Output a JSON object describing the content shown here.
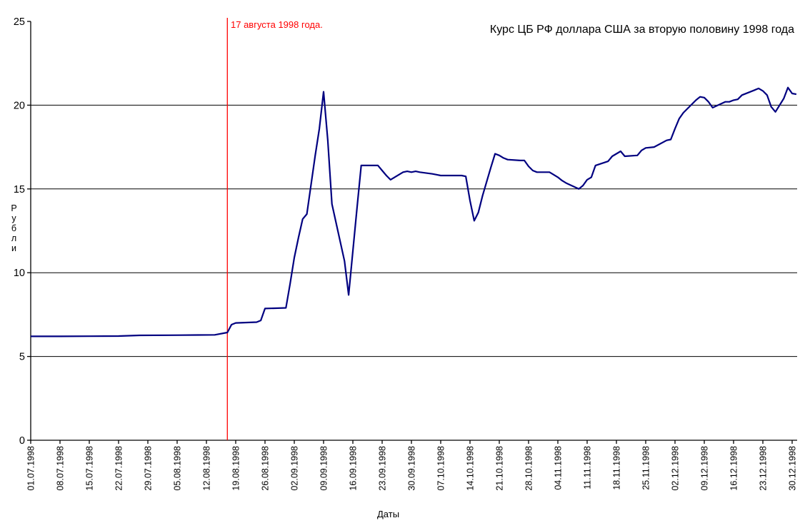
{
  "chart": {
    "title": "Курс ЦБ РФ доллара США за вторую половину 1998 года",
    "annotation": {
      "text": "17 августа 1998 года.",
      "date": "17.08.1998",
      "color": "#ff0000"
    },
    "colors": {
      "line": "#000080",
      "grid": "#000000",
      "axis": "#000000",
      "background": "#ffffff"
    },
    "y_axis": {
      "title": "Рубли",
      "tick_labels": [
        "0",
        "5",
        "10",
        "15",
        "20",
        "25"
      ]
    },
    "x_axis": {
      "title": "Даты",
      "tick_labels": [
        "01.07.1998",
        "08.07.1998",
        "15.07.1998",
        "22.07.1998",
        "29.07.1998",
        "05.08.1998",
        "12.08.1998",
        "19.08.1998",
        "26.08.1998",
        "02.09.1998",
        "09.09.1998",
        "16.09.1998",
        "23.09.1998",
        "30.09.1998",
        "07.10.1998",
        "14.10.1998",
        "21.10.1998",
        "28.10.1998",
        "04.11.1998",
        "11.11.1998",
        "18.11.1998",
        "25.11.1998",
        "02.12.1998",
        "09.12.1998",
        "16.12.1998",
        "23.12.1998",
        "30.12.1998"
      ]
    }
  },
  "chart_data": {
    "type": "line",
    "title": "Курс ЦБ РФ доллара США за вторую половину 1998 года",
    "xlabel": "Даты",
    "ylabel": "Рубли",
    "ylim": [
      0,
      25
    ],
    "y_ticks": [
      0,
      5,
      10,
      15,
      20,
      25
    ],
    "gridline_values": [
      5,
      10,
      15,
      20
    ],
    "grid": "horizontal",
    "legend_position": "none",
    "x_range": [
      "01.07.1998",
      "31.12.1998"
    ],
    "annotation": {
      "text": "17 августа 1998 года.",
      "x": "17.08.1998"
    },
    "series": [
      {
        "name": "Курс ЦБ РФ доллара США (руб.)",
        "points": [
          [
            "01.07.1998",
            6.2
          ],
          [
            "08.07.1998",
            6.2
          ],
          [
            "15.07.1998",
            6.21
          ],
          [
            "22.07.1998",
            6.22
          ],
          [
            "27.07.1998",
            6.26
          ],
          [
            "03.08.1998",
            6.27
          ],
          [
            "10.08.1998",
            6.28
          ],
          [
            "14.08.1998",
            6.29
          ],
          [
            "17.08.1998",
            6.43
          ],
          [
            "18.08.1998",
            6.9
          ],
          [
            "19.08.1998",
            7.0
          ],
          [
            "24.08.1998",
            7.05
          ],
          [
            "25.08.1998",
            7.15
          ],
          [
            "26.08.1998",
            7.86
          ],
          [
            "31.08.1998",
            7.9
          ],
          [
            "01.09.1998",
            9.33
          ],
          [
            "02.09.1998",
            10.9
          ],
          [
            "03.09.1998",
            12.1
          ],
          [
            "04.09.1998",
            13.2
          ],
          [
            "05.09.1998",
            13.5
          ],
          [
            "07.09.1998",
            17.0
          ],
          [
            "08.09.1998",
            18.6
          ],
          [
            "09.09.1998",
            20.8
          ],
          [
            "10.09.1998",
            17.9
          ],
          [
            "11.09.1998",
            14.1
          ],
          [
            "14.09.1998",
            10.7
          ],
          [
            "15.09.1998",
            8.67
          ],
          [
            "17.09.1998",
            13.9
          ],
          [
            "18.09.1998",
            16.4
          ],
          [
            "22.09.1998",
            16.4
          ],
          [
            "23.09.1998",
            16.1
          ],
          [
            "24.09.1998",
            15.8
          ],
          [
            "25.09.1998",
            15.55
          ],
          [
            "28.09.1998",
            16.0
          ],
          [
            "29.09.1998",
            16.05
          ],
          [
            "30.09.1998",
            16.0
          ],
          [
            "01.10.1998",
            16.05
          ],
          [
            "02.10.1998",
            16.0
          ],
          [
            "05.10.1998",
            15.9
          ],
          [
            "06.10.1998",
            15.85
          ],
          [
            "07.10.1998",
            15.8
          ],
          [
            "12.10.1998",
            15.8
          ],
          [
            "13.10.1998",
            15.75
          ],
          [
            "14.10.1998",
            14.3
          ],
          [
            "15.10.1998",
            13.1
          ],
          [
            "16.10.1998",
            13.6
          ],
          [
            "17.10.1998",
            14.6
          ],
          [
            "19.10.1998",
            16.3
          ],
          [
            "20.10.1998",
            17.1
          ],
          [
            "21.10.1998",
            17.0
          ],
          [
            "22.10.1998",
            16.85
          ],
          [
            "23.10.1998",
            16.75
          ],
          [
            "26.10.1998",
            16.7
          ],
          [
            "27.10.1998",
            16.7
          ],
          [
            "28.10.1998",
            16.35
          ],
          [
            "29.10.1998",
            16.1
          ],
          [
            "30.10.1998",
            16.0
          ],
          [
            "02.11.1998",
            16.0
          ],
          [
            "03.11.1998",
            15.85
          ],
          [
            "04.11.1998",
            15.7
          ],
          [
            "05.11.1998",
            15.5
          ],
          [
            "06.11.1998",
            15.35
          ],
          [
            "09.11.1998",
            15.0
          ],
          [
            "10.11.1998",
            15.2
          ],
          [
            "11.11.1998",
            15.55
          ],
          [
            "12.11.1998",
            15.7
          ],
          [
            "13.11.1998",
            16.4
          ],
          [
            "16.11.1998",
            16.65
          ],
          [
            "17.11.1998",
            16.95
          ],
          [
            "18.11.1998",
            17.1
          ],
          [
            "19.11.1998",
            17.25
          ],
          [
            "20.11.1998",
            16.95
          ],
          [
            "23.11.1998",
            17.0
          ],
          [
            "24.11.1998",
            17.3
          ],
          [
            "25.11.1998",
            17.45
          ],
          [
            "27.11.1998",
            17.5
          ],
          [
            "30.11.1998",
            17.9
          ],
          [
            "01.12.1998",
            17.95
          ],
          [
            "02.12.1998",
            18.6
          ],
          [
            "03.12.1998",
            19.2
          ],
          [
            "04.12.1998",
            19.55
          ],
          [
            "07.12.1998",
            20.3
          ],
          [
            "08.12.1998",
            20.5
          ],
          [
            "09.12.1998",
            20.45
          ],
          [
            "10.12.1998",
            20.2
          ],
          [
            "11.12.1998",
            19.85
          ],
          [
            "14.12.1998",
            20.2
          ],
          [
            "15.12.1998",
            20.2
          ],
          [
            "16.12.1998",
            20.3
          ],
          [
            "17.12.1998",
            20.35
          ],
          [
            "18.12.1998",
            20.6
          ],
          [
            "21.12.1998",
            20.9
          ],
          [
            "22.12.1998",
            21.0
          ],
          [
            "23.12.1998",
            20.85
          ],
          [
            "24.12.1998",
            20.6
          ],
          [
            "25.12.1998",
            19.9
          ],
          [
            "26.12.1998",
            19.6
          ],
          [
            "28.12.1998",
            20.4
          ],
          [
            "29.12.1998",
            21.05
          ],
          [
            "30.12.1998",
            20.7
          ],
          [
            "31.12.1998",
            20.65
          ]
        ]
      }
    ]
  }
}
